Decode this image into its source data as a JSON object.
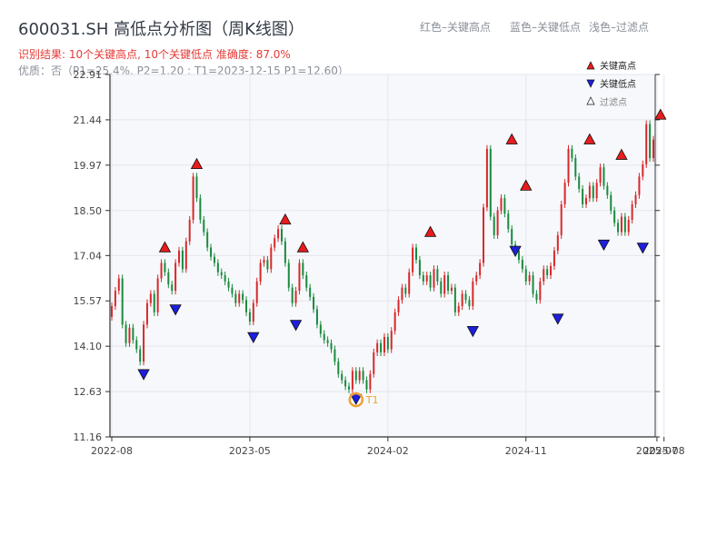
{
  "header": {
    "title": "600031.SH 高低点分析图（周K线图）",
    "result_text": "识别结果: 10个关键高点, 10个关键低点   准确度: 87.0%",
    "quality_text": "优质：否（P1=25.4%, P2=1.20 ; T1=2023-12-15 P1=12.60）",
    "color_note_red": "红色–关键高点",
    "color_note_blue": "蓝色–关键低点",
    "color_note_filtered": "浅色–过滤点"
  },
  "colors": {
    "up": "#d8282a",
    "down": "#1a8a3e",
    "high_marker": "#e81c1c",
    "low_marker": "#1e1edb",
    "t1_ring": "#f0a030",
    "plot_bg": "#f6f8fb"
  },
  "chart_data": {
    "type": "candlestick",
    "y_ticks": [
      "11.16",
      "12.63",
      "14.10",
      "15.57",
      "17.04",
      "18.50",
      "19.97",
      "21.44",
      "22.91"
    ],
    "ylim": [
      11.16,
      22.91
    ],
    "x_ticks": [
      {
        "label": "2022-08",
        "week": 0
      },
      {
        "label": "2023-05",
        "week": 39
      },
      {
        "label": "2024-02",
        "week": 78
      },
      {
        "label": "2024-11",
        "week": 117
      },
      {
        "label": "2025-07",
        "week": 154
      },
      {
        "label": "2025-08",
        "week": 156
      }
    ],
    "legend": {
      "high": "关键高点",
      "low": "关键低点",
      "filtered": "过滤点"
    },
    "t1_label": "T1",
    "closes": [
      15.4,
      15.9,
      16.3,
      14.8,
      14.2,
      14.7,
      14.3,
      14.0,
      13.6,
      14.8,
      15.5,
      15.8,
      15.2,
      16.3,
      16.8,
      16.5,
      16.1,
      15.9,
      16.8,
      17.2,
      16.6,
      17.5,
      18.2,
      19.6,
      18.9,
      18.2,
      17.8,
      17.3,
      17.0,
      16.8,
      16.5,
      16.4,
      16.2,
      16.0,
      15.8,
      15.5,
      15.8,
      15.6,
      15.2,
      14.9,
      15.5,
      16.2,
      16.8,
      16.9,
      16.6,
      17.3,
      17.6,
      17.9,
      17.5,
      16.8,
      16.0,
      15.5,
      15.9,
      16.8,
      16.4,
      16.0,
      15.7,
      15.3,
      14.8,
      14.5,
      14.3,
      14.2,
      14.0,
      13.6,
      13.2,
      13.0,
      12.8,
      12.7,
      13.3,
      13.0,
      13.3,
      13.0,
      12.7,
      13.2,
      13.9,
      14.2,
      13.9,
      14.4,
      14.0,
      14.6,
      15.2,
      15.6,
      16.0,
      15.8,
      16.5,
      17.3,
      16.9,
      16.4,
      16.2,
      16.4,
      16.0,
      16.6,
      16.2,
      15.8,
      16.4,
      15.9,
      16.0,
      15.2,
      15.4,
      15.8,
      15.6,
      15.4,
      16.2,
      16.4,
      16.8,
      18.6,
      20.5,
      18.3,
      17.7,
      18.5,
      18.9,
      18.4,
      17.9,
      17.4,
      17.2,
      16.9,
      16.6,
      16.2,
      16.4,
      15.8,
      15.6,
      16.2,
      16.6,
      16.4,
      16.7,
      17.2,
      17.7,
      18.7,
      19.4,
      20.5,
      20.2,
      19.6,
      19.2,
      18.7,
      18.9,
      19.3,
      18.9,
      19.4,
      19.9,
      19.3,
      19.0,
      18.5,
      18.1,
      17.8,
      18.3,
      17.8,
      18.2,
      18.7,
      19.0,
      19.6,
      20.0,
      21.3,
      20.2,
      20.8
    ],
    "key_highs": [
      {
        "week": 15,
        "value": 17.1
      },
      {
        "week": 24,
        "value": 19.8
      },
      {
        "week": 49,
        "value": 18.0
      },
      {
        "week": 54,
        "value": 17.1
      },
      {
        "week": 90,
        "value": 17.6
      },
      {
        "week": 113,
        "value": 20.6
      },
      {
        "week": 117,
        "value": 19.1
      },
      {
        "week": 135,
        "value": 20.6
      },
      {
        "week": 144,
        "value": 20.1
      },
      {
        "week": 155,
        "value": 21.4
      }
    ],
    "key_lows": [
      {
        "week": 9,
        "value": 13.4
      },
      {
        "week": 18,
        "value": 15.5
      },
      {
        "week": 40,
        "value": 14.6
      },
      {
        "week": 52,
        "value": 15.0
      },
      {
        "week": 69,
        "value": 12.6
      },
      {
        "week": 102,
        "value": 14.8
      },
      {
        "week": 114,
        "value": 17.4
      },
      {
        "week": 126,
        "value": 15.2
      },
      {
        "week": 139,
        "value": 17.6
      },
      {
        "week": 150,
        "value": 17.5
      }
    ],
    "t1": {
      "week": 69,
      "value": 12.6,
      "label": "T1"
    }
  }
}
